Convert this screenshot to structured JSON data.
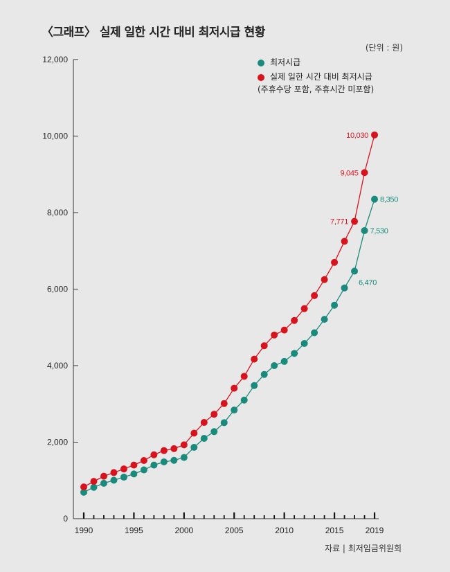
{
  "title": "〈그래프〉 실제 일한 시간 대비 최저시급 현황",
  "unit_label": "(단위 : 원)",
  "source_label": "자료 | 최저임금위원회",
  "colors": {
    "min_wage": "#1a8a7c",
    "real_wage": "#d7141e",
    "axis": "#333333"
  },
  "legend": {
    "min_wage": "최저시급",
    "real_wage": "실제 일한 시간 대비 최저시급",
    "real_wage_note": "(주휴수당 포함, 주휴시간 미포함)"
  },
  "chart_data": {
    "type": "line",
    "title": "〈그래프〉 실제 일한 시간 대비 최저시급 현황",
    "xlabel": "",
    "ylabel": "",
    "xlim": [
      1990,
      2019
    ],
    "ylim": [
      0,
      12000
    ],
    "grid": false,
    "legend_position": "top-right",
    "y_ticks": [
      0,
      2000,
      4000,
      6000,
      8000,
      10000,
      12000
    ],
    "y_tick_labels": [
      "0",
      "2,000",
      "4,000",
      "6,000",
      "8,000",
      "10,000",
      "12,000"
    ],
    "x_tick_labels": [
      {
        "x": 1990,
        "label": "1990"
      },
      {
        "x": 1995,
        "label": "1995"
      },
      {
        "x": 2000,
        "label": "2000"
      },
      {
        "x": 2005,
        "label": "2005"
      },
      {
        "x": 2010,
        "label": "2010"
      },
      {
        "x": 2015,
        "label": "2015"
      },
      {
        "x": 2019,
        "label": "2019"
      }
    ],
    "x": [
      1990,
      1991,
      1992,
      1993,
      1994,
      1995,
      1996,
      1997,
      1998,
      1999,
      2000,
      2001,
      2002,
      2003,
      2004,
      2005,
      2006,
      2007,
      2008,
      2009,
      2010,
      2011,
      2012,
      2013,
      2014,
      2015,
      2016,
      2017,
      2018,
      2019
    ],
    "series": [
      {
        "name": "최저시급",
        "color": "#1a8a7c",
        "values": [
          690,
          820,
          925,
          1005,
          1085,
          1170,
          1275,
          1400,
          1485,
          1525,
          1600,
          1865,
          2100,
          2275,
          2510,
          2840,
          3100,
          3480,
          3770,
          4000,
          4110,
          4320,
          4580,
          4860,
          5210,
          5580,
          6030,
          6470,
          7530,
          8350
        ],
        "labels": [
          {
            "x": 2017,
            "text": "6,470",
            "pos": "below-right"
          },
          {
            "x": 2018,
            "text": "7,530",
            "pos": "right"
          },
          {
            "x": 2019,
            "text": "8,350",
            "pos": "right"
          }
        ]
      },
      {
        "name": "실제 일한 시간 대비 최저시급",
        "color": "#d7141e",
        "values": [
          830,
          975,
          1110,
          1205,
          1300,
          1400,
          1520,
          1670,
          1780,
          1830,
          1930,
          2235,
          2515,
          2730,
          3010,
          3410,
          3720,
          4170,
          4520,
          4800,
          4930,
          5180,
          5490,
          5830,
          6250,
          6700,
          7250,
          7771,
          9045,
          10030
        ],
        "labels": [
          {
            "x": 2017,
            "text": "7,771",
            "pos": "left"
          },
          {
            "x": 2018,
            "text": "9,045",
            "pos": "left"
          },
          {
            "x": 2019,
            "text": "10,030",
            "pos": "left"
          }
        ]
      }
    ]
  }
}
